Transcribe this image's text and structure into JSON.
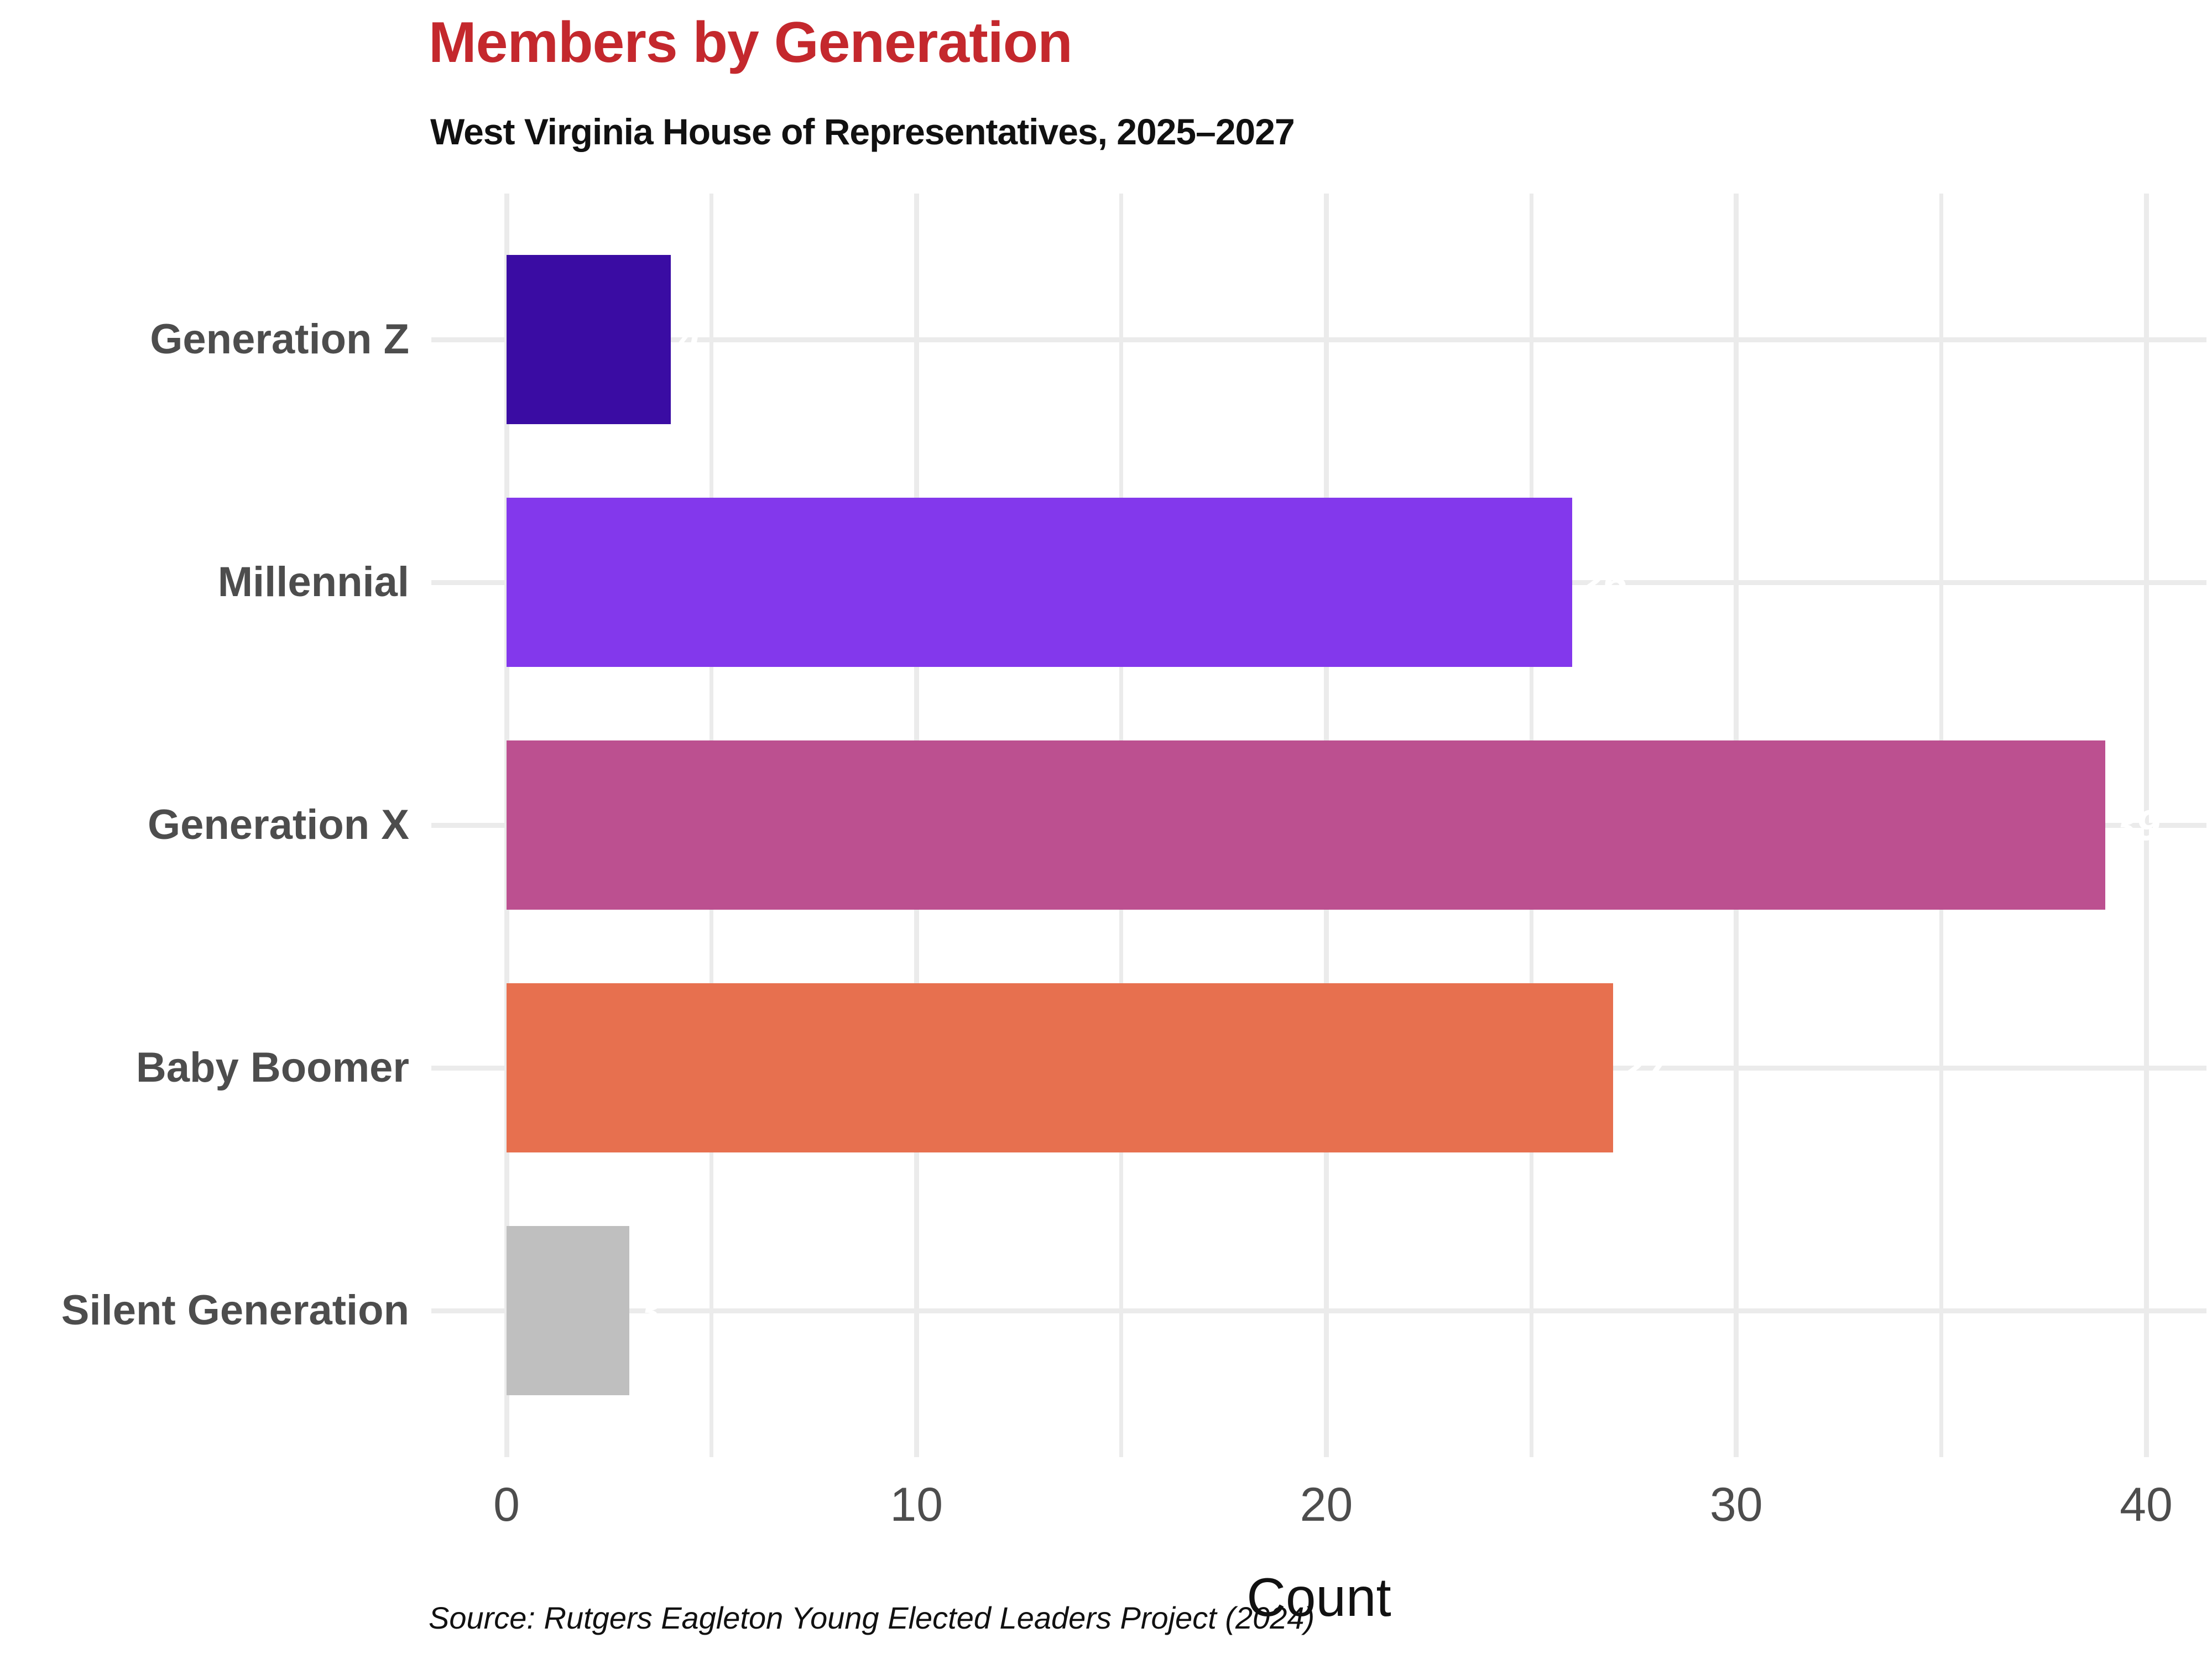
{
  "header": {
    "title": "Members by Generation",
    "subtitle": "West Virginia House of Representatives, 2025–2027",
    "title_color": "#C4282D"
  },
  "chart_data": {
    "type": "bar",
    "orientation": "horizontal",
    "title": "Members by Generation",
    "subtitle": "West Virginia House of Representatives, 2025–2027",
    "categories": [
      "Generation Z",
      "Millennial",
      "Generation X",
      "Baby Boomer",
      "Silent Generation"
    ],
    "values": [
      4,
      26,
      39,
      27,
      3
    ],
    "bar_colors": [
      "#3A0CA3",
      "#8338EC",
      "#BC5090",
      "#E7704F",
      "#BFBFBF"
    ],
    "xlabel": "Count",
    "ylabel": "",
    "xlim": [
      0,
      40
    ],
    "x_ticks": [
      0,
      10,
      20,
      30,
      40
    ],
    "minor_grid_step": 5,
    "grid": "on",
    "legend": "none",
    "axis_text_color": "#4D4D4D",
    "gridline_color": "#EBEBEB"
  },
  "footer": {
    "source": "Source: Rutgers Eagleton Young Elected Leaders Project (2024)"
  }
}
